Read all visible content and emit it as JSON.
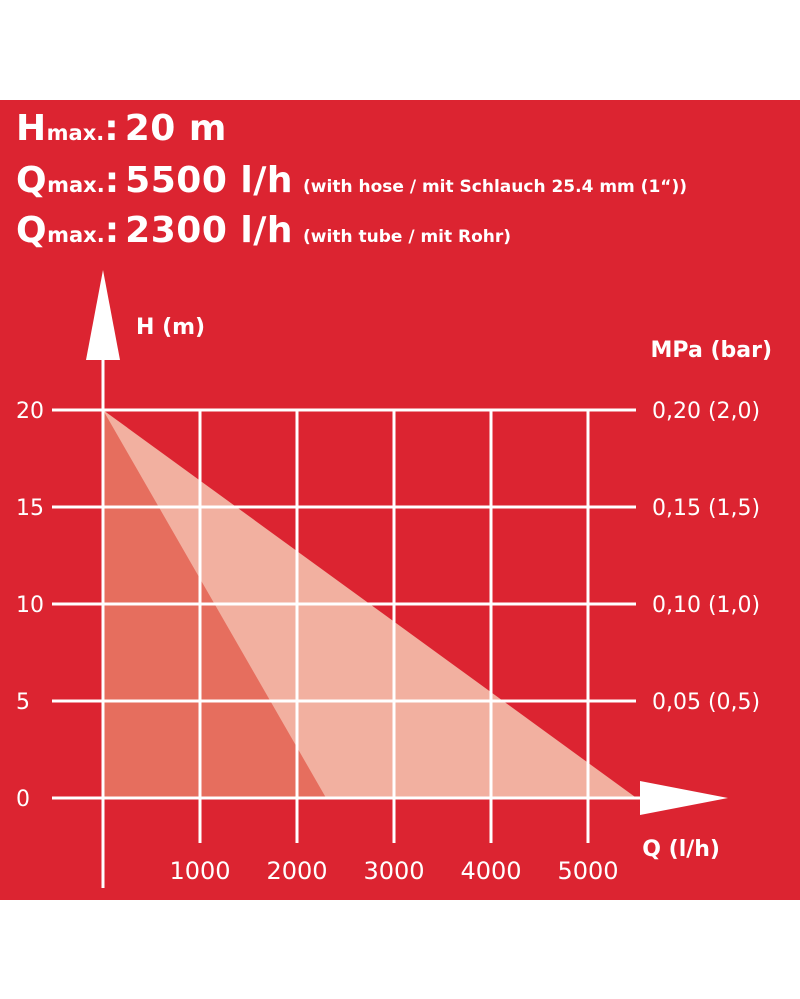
{
  "specs": [
    {
      "symbol": "H",
      "subscript": "max.",
      "colon": ":",
      "value": "20 m",
      "note": ""
    },
    {
      "symbol": "Q",
      "subscript": "max.",
      "colon": ":",
      "value": "5500 l/h",
      "note": "(with hose / mit Schlauch 25.4 mm (1“))"
    },
    {
      "symbol": "Q",
      "subscript": "max.",
      "colon": ":",
      "value": "2300 l/h",
      "note": "(with tube / mit Rohr)"
    }
  ],
  "colors": {
    "background": "#dc2431",
    "hose_area": "#f2b0a0",
    "tube_area": "#e66e5e",
    "lines": "#ffffff"
  },
  "chart_data": {
    "type": "area",
    "xlabel": "Q (l/h)",
    "ylabel": "H (m)",
    "y2label": "MPa (bar)",
    "xlim": [
      0,
      5500
    ],
    "ylim": [
      0,
      20
    ],
    "x_ticks": [
      1000,
      2000,
      3000,
      4000,
      5000
    ],
    "x_tick_labels": [
      "1000",
      "2000",
      "3000",
      "4000",
      "5000"
    ],
    "y_ticks": [
      0,
      5,
      10,
      15,
      20
    ],
    "y_tick_labels": [
      "0",
      "5",
      "10",
      "15",
      "20"
    ],
    "y2_ticks": [
      5,
      10,
      15,
      20
    ],
    "y2_tick_labels": [
      "0,05 (0,5)",
      "0,10 (1,0)",
      "0,15 (1,5)",
      "0,20 (2,0)"
    ],
    "grid": true,
    "series": [
      {
        "key": "hose",
        "points": [
          [
            0,
            20
          ],
          [
            5500,
            0
          ]
        ]
      },
      {
        "key": "tube",
        "points": [
          [
            0,
            20
          ],
          [
            2300,
            0
          ]
        ]
      }
    ]
  }
}
